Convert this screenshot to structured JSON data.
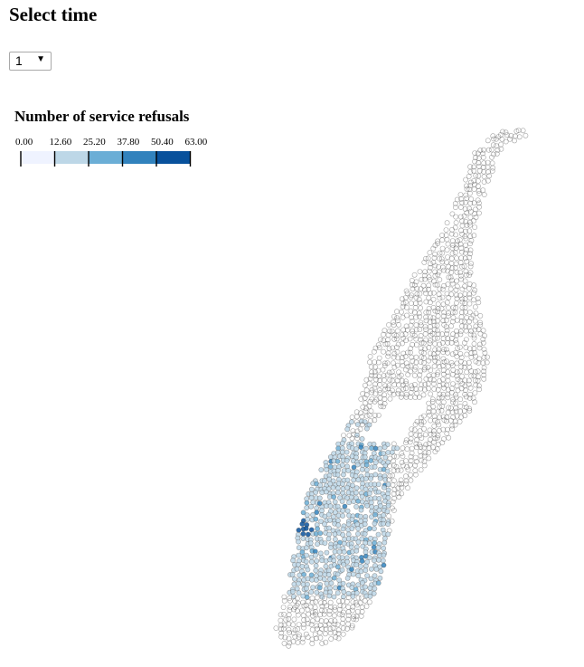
{
  "header": {
    "title": "Select time"
  },
  "time_select": {
    "selected": "1",
    "arrow_icon": "caret-down-icon"
  },
  "legend": {
    "title": "Number of service refusals",
    "ticks": [
      "0.00",
      "12.60",
      "25.20",
      "37.80",
      "50.40",
      "63.00"
    ],
    "colors": [
      "#eff3ff",
      "#bdd7e7",
      "#6baed6",
      "#3182bd",
      "#08519c"
    ]
  },
  "map": {
    "region": "Manhattan",
    "point_stroke": "#555555",
    "value_domain": [
      0,
      63
    ]
  }
}
